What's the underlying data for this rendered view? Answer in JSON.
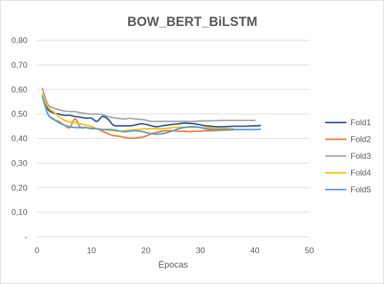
{
  "chart_data": {
    "type": "line",
    "title": "BOW_BERT_BiLSTM",
    "xlabel": "Épocas",
    "ylabel": "",
    "xlim": [
      0,
      50
    ],
    "ylim": [
      0,
      0.8
    ],
    "x_ticks": [
      "0",
      "10",
      "20",
      "30",
      "40",
      "50"
    ],
    "y_ticks": [
      "-",
      "0,10",
      "0,20",
      "0,30",
      "0,40",
      "0,50",
      "0,60",
      "0,70",
      "0,80"
    ],
    "grid": true,
    "legend": "right",
    "series": [
      {
        "name": "Fold1",
        "color": "#2e5597",
        "x": [
          1,
          2,
          3,
          4,
          5,
          6,
          7,
          8,
          9,
          10,
          11,
          12,
          13,
          14,
          15,
          16,
          17,
          18,
          19,
          20,
          21,
          22,
          23,
          24,
          25,
          26,
          27,
          28,
          29,
          30,
          31,
          32,
          33,
          34,
          35,
          36,
          37,
          38,
          39,
          40,
          41
        ],
        "y": [
          0.58,
          0.52,
          0.505,
          0.5,
          0.495,
          0.495,
          0.49,
          0.487,
          0.483,
          0.483,
          0.47,
          0.49,
          0.48,
          0.455,
          0.452,
          0.452,
          0.452,
          0.455,
          0.46,
          0.458,
          0.452,
          0.448,
          0.452,
          0.455,
          0.458,
          0.46,
          0.463,
          0.462,
          0.46,
          0.456,
          0.452,
          0.45,
          0.448,
          0.448,
          0.449,
          0.45,
          0.45,
          0.45,
          0.451,
          0.452,
          0.453
        ]
      },
      {
        "name": "Fold2",
        "color": "#ed7d31",
        "x": [
          1,
          2,
          3,
          4,
          5,
          6,
          7,
          8,
          9,
          10,
          11,
          12,
          13,
          14,
          15,
          16,
          17,
          18,
          19,
          20,
          21,
          22,
          23,
          24,
          25,
          26,
          27,
          28,
          29,
          30,
          31,
          32,
          33,
          34,
          35,
          36,
          37
        ],
        "y": [
          0.575,
          0.5,
          0.478,
          0.47,
          0.455,
          0.445,
          0.48,
          0.445,
          0.445,
          0.44,
          0.44,
          0.43,
          0.42,
          0.412,
          0.41,
          0.405,
          0.402,
          0.402,
          0.405,
          0.41,
          0.42,
          0.425,
          0.43,
          0.432,
          0.432,
          0.43,
          0.43,
          0.428,
          0.43,
          0.43,
          0.432,
          0.432,
          0.433,
          0.434,
          0.435,
          0.436,
          0.437
        ]
      },
      {
        "name": "Fold3",
        "color": "#a5a5a5",
        "x": [
          1,
          2,
          3,
          4,
          5,
          6,
          7,
          8,
          9,
          10,
          11,
          12,
          13,
          14,
          15,
          16,
          17,
          18,
          19,
          20,
          21,
          22,
          23,
          24,
          25,
          26,
          27,
          28,
          29,
          30,
          31,
          32,
          33,
          34,
          35,
          36,
          37,
          38,
          39,
          40
        ],
        "y": [
          0.605,
          0.54,
          0.525,
          0.518,
          0.512,
          0.51,
          0.51,
          0.505,
          0.502,
          0.5,
          0.5,
          0.498,
          0.49,
          0.485,
          0.482,
          0.48,
          0.482,
          0.48,
          0.478,
          0.475,
          0.47,
          0.47,
          0.47,
          0.47,
          0.47,
          0.47,
          0.47,
          0.47,
          0.47,
          0.472,
          0.472,
          0.473,
          0.473,
          0.474,
          0.474,
          0.474,
          0.474,
          0.474,
          0.474,
          0.474
        ]
      },
      {
        "name": "Fold4",
        "color": "#ffc000",
        "x": [
          1,
          2,
          3,
          4,
          5,
          6,
          7,
          8,
          9,
          10,
          11,
          12,
          13,
          14,
          15,
          16,
          17,
          18,
          19,
          20,
          21,
          22,
          23,
          24,
          25,
          26,
          27,
          28,
          29,
          30,
          31,
          32,
          33,
          34,
          35,
          36
        ],
        "y": [
          0.58,
          0.53,
          0.51,
          0.49,
          0.475,
          0.468,
          0.465,
          0.46,
          0.455,
          0.45,
          0.44,
          0.437,
          0.435,
          0.432,
          0.43,
          0.432,
          0.435,
          0.436,
          0.438,
          0.44,
          0.44,
          0.44,
          0.44,
          0.442,
          0.445,
          0.446,
          0.446,
          0.446,
          0.446,
          0.445,
          0.444,
          0.443,
          0.442,
          0.442,
          0.441,
          0.44
        ]
      },
      {
        "name": "Fold5",
        "color": "#5b9bd5",
        "x": [
          1,
          2,
          3,
          4,
          5,
          6,
          7,
          8,
          9,
          10,
          11,
          12,
          13,
          14,
          15,
          16,
          17,
          18,
          19,
          20,
          21,
          22,
          23,
          24,
          25,
          26,
          27,
          28,
          29,
          30,
          31,
          32,
          33,
          34,
          35,
          36,
          37,
          38,
          39,
          40,
          41
        ],
        "y": [
          0.57,
          0.5,
          0.48,
          0.465,
          0.455,
          0.448,
          0.445,
          0.445,
          0.445,
          0.442,
          0.44,
          0.437,
          0.437,
          0.436,
          0.432,
          0.428,
          0.43,
          0.432,
          0.43,
          0.425,
          0.42,
          0.418,
          0.42,
          0.425,
          0.432,
          0.44,
          0.445,
          0.448,
          0.448,
          0.445,
          0.44,
          0.437,
          0.437,
          0.437,
          0.437,
          0.437,
          0.437,
          0.437,
          0.437,
          0.437,
          0.438
        ]
      }
    ]
  }
}
